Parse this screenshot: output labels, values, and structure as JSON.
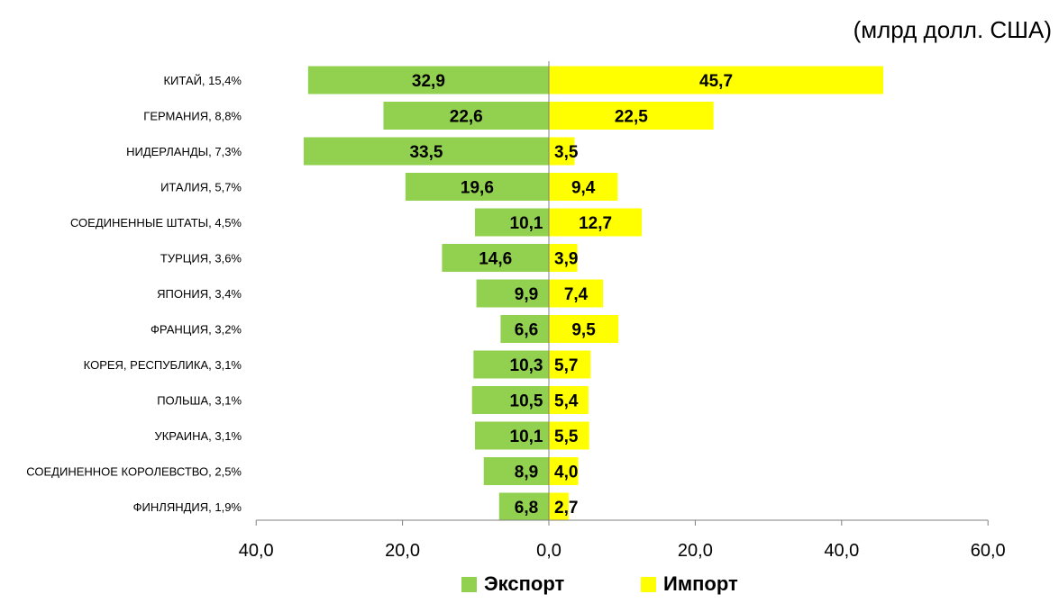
{
  "chart_data": {
    "type": "bar",
    "orientation": "horizontal-diverging",
    "unit_label": "(млрд долл. США)",
    "categories": [
      "КИТАЙ, 15,4%",
      "ГЕРМАНИЯ, 8,8%",
      "НИДЕРЛАНДЫ, 7,3%",
      "ИТАЛИЯ, 5,7%",
      "СОЕДИНЕННЫЕ ШТАТЫ, 4,5%",
      "ТУРЦИЯ, 3,6%",
      "ЯПОНИЯ, 3,4%",
      "ФРАНЦИЯ, 3,2%",
      "КОРЕЯ, РЕСПУБЛИКА, 3,1%",
      "ПОЛЬША, 3,1%",
      "УКРАИНА, 3,1%",
      "СОЕДИНЕННОЕ КОРОЛЕВСТВО, 2,5%",
      "ФИНЛЯНДИЯ, 1,9%"
    ],
    "series": [
      {
        "name": "Экспорт",
        "color": "#92d050",
        "values": [
          32.9,
          22.6,
          33.5,
          19.6,
          10.1,
          14.6,
          9.9,
          6.6,
          10.3,
          10.5,
          10.1,
          8.9,
          6.8
        ],
        "labels": [
          "32,9",
          "22,6",
          "33,5",
          "19,6",
          "10,1",
          "14,6",
          "9,9",
          "6,6",
          "10,3",
          "10,5",
          "10,1",
          "8,9",
          "6,8"
        ]
      },
      {
        "name": "Импорт",
        "color": "#ffff00",
        "values": [
          45.7,
          22.5,
          3.5,
          9.4,
          12.7,
          3.9,
          7.4,
          9.5,
          5.7,
          5.4,
          5.5,
          4.0,
          2.7
        ],
        "labels": [
          "45,7",
          "22,5",
          "3,5",
          "9,4",
          "12,7",
          "3,9",
          "7,4",
          "9,5",
          "5,7",
          "5,4",
          "5,5",
          "4,0",
          "2,7"
        ]
      }
    ],
    "xlim": [
      -40,
      60
    ],
    "x_ticks": [
      -40,
      -20,
      0,
      20,
      40,
      60
    ],
    "x_tick_labels": [
      "40,0",
      "20,0",
      "0,0",
      "20,0",
      "40,0",
      "60,0"
    ],
    "legend": "bottom-center",
    "grid": false
  }
}
